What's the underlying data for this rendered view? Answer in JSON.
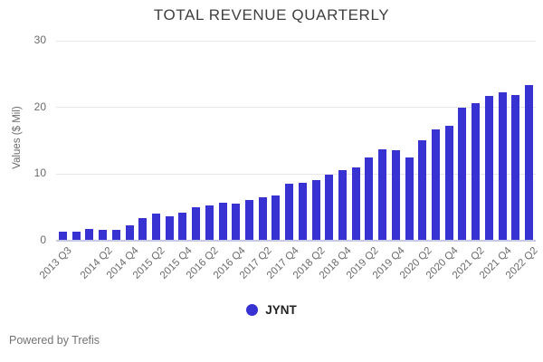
{
  "page": {
    "title": "TOTAL REVENUE QUARTERLY",
    "powered_by": "Powered by Trefis"
  },
  "legend": {
    "label": "JYNT",
    "marker_color": "#3732d1"
  },
  "chart_data": {
    "type": "bar",
    "title": "TOTAL REVENUE QUARTERLY",
    "xlabel": "",
    "ylabel": "Values ($ Mil)",
    "ylim": [
      0,
      30
    ],
    "y_ticks": [
      0,
      10,
      20,
      30
    ],
    "grid": true,
    "legend_position": "bottom",
    "series_name": "JYNT",
    "bar_color": "#3732d1",
    "categories": [
      "2013 Q3",
      "2013 Q4",
      "2014 Q1",
      "2014 Q2",
      "2014 Q3",
      "2014 Q4",
      "2015 Q1",
      "2015 Q2",
      "2015 Q3",
      "2015 Q4",
      "2016 Q1",
      "2016 Q2",
      "2016 Q3",
      "2016 Q4",
      "2017 Q1",
      "2017 Q2",
      "2017 Q3",
      "2017 Q4",
      "2018 Q1",
      "2018 Q2",
      "2018 Q3",
      "2018 Q4",
      "2019 Q1",
      "2019 Q2",
      "2019 Q3",
      "2019 Q4",
      "2020 Q1",
      "2020 Q2",
      "2020 Q3",
      "2020 Q4",
      "2021 Q1",
      "2021 Q2",
      "2021 Q3",
      "2021 Q4",
      "2022 Q1",
      "2022 Q2"
    ],
    "values": [
      1.3,
      1.3,
      1.7,
      1.6,
      1.5,
      2.3,
      3.3,
      4.0,
      3.6,
      4.1,
      4.9,
      5.3,
      5.7,
      5.5,
      6.0,
      6.5,
      6.8,
      8.5,
      8.7,
      9.0,
      9.9,
      10.5,
      11.0,
      12.5,
      13.7,
      13.5,
      12.4,
      15.1,
      16.7,
      17.2,
      19.9,
      20.6,
      21.7,
      22.2,
      21.9,
      23.4
    ],
    "x_tick_labels_visible": [
      "2013 Q3",
      "2014 Q2",
      "2014 Q4",
      "2015 Q2",
      "2015 Q4",
      "2016 Q2",
      "2016 Q4",
      "2017 Q2",
      "2017 Q4",
      "2018 Q2",
      "2018 Q4",
      "2019 Q2",
      "2019 Q4",
      "2020 Q2",
      "2020 Q4",
      "2021 Q2",
      "2021 Q4",
      "2022 Q2"
    ]
  }
}
